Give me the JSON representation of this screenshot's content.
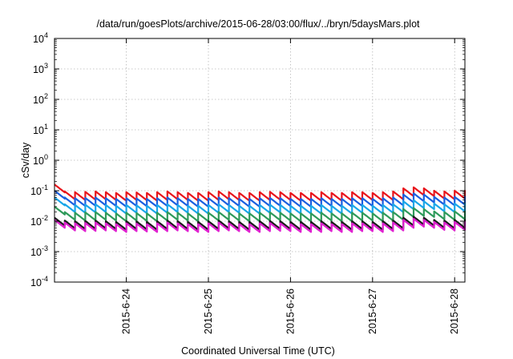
{
  "chart_data": {
    "type": "line",
    "title": "/data/run/goesPlots/archive/2015-06-28/03:00/flux/../bryn/5daysMars.plot",
    "xlabel": "Coordinated Universal Time (UTC)",
    "ylabel": "cSv/day",
    "yscale": "log",
    "ylim": [
      0.0001,
      10000
    ],
    "y_ticks": [
      {
        "base": "10",
        "exp": "-4"
      },
      {
        "base": "10",
        "exp": "-3"
      },
      {
        "base": "10",
        "exp": "-2"
      },
      {
        "base": "10",
        "exp": "-1"
      },
      {
        "base": "10",
        "exp": "0"
      },
      {
        "base": "10",
        "exp": "1"
      },
      {
        "base": "10",
        "exp": "2"
      },
      {
        "base": "10",
        "exp": "3"
      },
      {
        "base": "10",
        "exp": "4"
      }
    ],
    "xlim": [
      "2015-06-23 03:00",
      "2015-06-28 03:00"
    ],
    "x_ticks": [
      "2015-6-24",
      "2015-6-25",
      "2015-6-26",
      "2015-6-27",
      "2015-6-28"
    ],
    "grid": true,
    "sawtooth_period_hours": 3,
    "series": [
      {
        "color": "#e8141b",
        "values": [
          0.16,
          0.095,
          0.09,
          0.092,
          0.095,
          0.09,
          0.085,
          0.09,
          0.088,
          0.085,
          0.09,
          0.095,
          0.09,
          0.085,
          0.085,
          0.09,
          0.095,
          0.09,
          0.085,
          0.085,
          0.09,
          0.092,
          0.09,
          0.085,
          0.085,
          0.085,
          0.09,
          0.085,
          0.085,
          0.09,
          0.09,
          0.085,
          0.09,
          0.095,
          0.12,
          0.13,
          0.12,
          0.1,
          0.095,
          0.1,
          0.105,
          0.11,
          0.14,
          0.115,
          0.1,
          0.095,
          0.09,
          0.09,
          0.095,
          0.09,
          0.085,
          0.09,
          0.088,
          0.08,
          0.075,
          0.07
        ]
      },
      {
        "color": "#1a5fe0",
        "values": [
          0.1,
          0.06,
          0.057,
          0.058,
          0.06,
          0.057,
          0.054,
          0.057,
          0.056,
          0.054,
          0.057,
          0.06,
          0.057,
          0.054,
          0.054,
          0.057,
          0.06,
          0.057,
          0.054,
          0.054,
          0.057,
          0.058,
          0.057,
          0.054,
          0.054,
          0.054,
          0.057,
          0.054,
          0.054,
          0.057,
          0.057,
          0.054,
          0.057,
          0.06,
          0.075,
          0.082,
          0.075,
          0.063,
          0.06,
          0.063,
          0.066,
          0.07,
          0.088,
          0.072,
          0.063,
          0.06,
          0.057,
          0.057,
          0.06,
          0.057,
          0.054,
          0.057,
          0.056,
          0.05,
          0.047,
          0.044
        ]
      },
      {
        "color": "#1aa6e8",
        "values": [
          0.06,
          0.036,
          0.034,
          0.035,
          0.036,
          0.034,
          0.032,
          0.034,
          0.033,
          0.032,
          0.034,
          0.036,
          0.034,
          0.032,
          0.032,
          0.034,
          0.036,
          0.034,
          0.032,
          0.032,
          0.034,
          0.035,
          0.034,
          0.032,
          0.032,
          0.032,
          0.034,
          0.032,
          0.032,
          0.034,
          0.034,
          0.032,
          0.034,
          0.036,
          0.045,
          0.049,
          0.045,
          0.038,
          0.036,
          0.038,
          0.04,
          0.042,
          0.053,
          0.043,
          0.038,
          0.036,
          0.034,
          0.034,
          0.036,
          0.034,
          0.032,
          0.034,
          0.033,
          0.03,
          0.028,
          0.026
        ]
      },
      {
        "color": "#2e9a5a",
        "values": [
          0.03,
          0.02,
          0.019,
          0.0195,
          0.02,
          0.019,
          0.018,
          0.019,
          0.0185,
          0.018,
          0.019,
          0.02,
          0.019,
          0.018,
          0.018,
          0.019,
          0.02,
          0.019,
          0.018,
          0.018,
          0.019,
          0.0195,
          0.019,
          0.018,
          0.018,
          0.018,
          0.019,
          0.018,
          0.018,
          0.019,
          0.019,
          0.018,
          0.019,
          0.02,
          0.025,
          0.027,
          0.025,
          0.021,
          0.02,
          0.021,
          0.022,
          0.023,
          0.029,
          0.024,
          0.021,
          0.02,
          0.019,
          0.019,
          0.02,
          0.019,
          0.018,
          0.019,
          0.0185,
          0.017,
          0.016,
          0.015
        ]
      },
      {
        "color": "#1a1a1a",
        "values": [
          0.013,
          0.0105,
          0.01,
          0.0102,
          0.0105,
          0.01,
          0.0095,
          0.01,
          0.0098,
          0.0095,
          0.01,
          0.0105,
          0.01,
          0.0095,
          0.0095,
          0.01,
          0.0105,
          0.01,
          0.0095,
          0.0095,
          0.01,
          0.0102,
          0.01,
          0.0095,
          0.0095,
          0.0095,
          0.01,
          0.0095,
          0.0095,
          0.01,
          0.01,
          0.0095,
          0.01,
          0.0105,
          0.013,
          0.014,
          0.013,
          0.011,
          0.0105,
          0.011,
          0.0115,
          0.012,
          0.015,
          0.0125,
          0.011,
          0.0105,
          0.01,
          0.01,
          0.0105,
          0.01,
          0.0095,
          0.01,
          0.0098,
          0.009,
          0.0085,
          0.008
        ]
      },
      {
        "color": "#e020d0",
        "values": [
          0.011,
          0.009,
          0.0085,
          0.0087,
          0.009,
          0.0085,
          0.008,
          0.0085,
          0.0083,
          0.008,
          0.0085,
          0.009,
          0.0085,
          0.008,
          0.008,
          0.0085,
          0.009,
          0.0085,
          0.008,
          0.008,
          0.0085,
          0.0087,
          0.0085,
          0.008,
          0.008,
          0.008,
          0.0085,
          0.008,
          0.008,
          0.0085,
          0.0085,
          0.008,
          0.0085,
          0.009,
          0.011,
          0.012,
          0.011,
          0.0094,
          0.009,
          0.0094,
          0.0098,
          0.0102,
          0.0128,
          0.0106,
          0.0094,
          0.009,
          0.0085,
          0.0085,
          0.009,
          0.0085,
          0.008,
          0.0085,
          0.0083,
          0.0077,
          0.0072,
          0.0068
        ]
      }
    ]
  }
}
